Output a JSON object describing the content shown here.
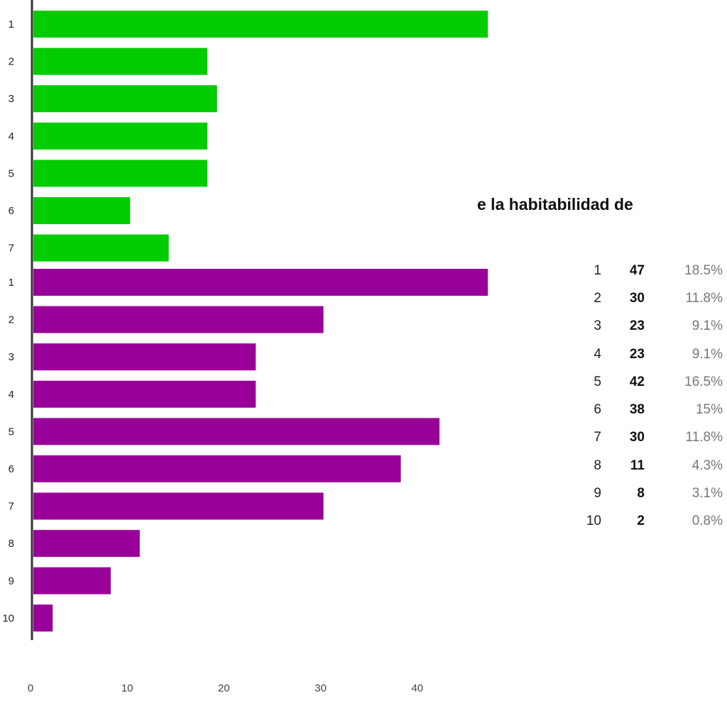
{
  "heading": "e la habitabilidad de",
  "charts": [
    {
      "type": "bar",
      "orientation": "horizontal",
      "color": "#00cc00",
      "categories": [
        "1",
        "2",
        "3",
        "4",
        "5",
        "6",
        "7"
      ],
      "values": [
        47,
        18,
        19,
        18,
        18,
        10,
        14
      ]
    },
    {
      "type": "bar",
      "orientation": "horizontal",
      "color": "#990099",
      "categories": [
        "1",
        "2",
        "3",
        "4",
        "5",
        "6",
        "7",
        "8",
        "9",
        "10"
      ],
      "values": [
        47,
        30,
        23,
        23,
        42,
        38,
        30,
        11,
        8,
        2
      ],
      "xticks": [
        "0",
        "10",
        "20",
        "30",
        "40"
      ],
      "xlim": [
        0,
        47
      ]
    }
  ],
  "summary": [
    {
      "cat": "1",
      "count": "47",
      "pct": "18.5%"
    },
    {
      "cat": "2",
      "count": "30",
      "pct": "11.8%"
    },
    {
      "cat": "3",
      "count": "23",
      "pct": "9.1%"
    },
    {
      "cat": "4",
      "count": "23",
      "pct": "9.1%"
    },
    {
      "cat": "5",
      "count": "42",
      "pct": "16.5%"
    },
    {
      "cat": "6",
      "count": "38",
      "pct": "15%"
    },
    {
      "cat": "7",
      "count": "30",
      "pct": "11.8%"
    },
    {
      "cat": "8",
      "count": "11",
      "pct": "4.3%"
    },
    {
      "cat": "9",
      "count": "8",
      "pct": "3.1%"
    },
    {
      "cat": "10",
      "count": "2",
      "pct": "0.8%"
    }
  ],
  "chart_data": [
    {
      "type": "bar",
      "categories": [
        "1",
        "2",
        "3",
        "4",
        "5",
        "6",
        "7"
      ],
      "values": [
        47,
        18,
        19,
        18,
        18,
        10,
        14
      ],
      "xlim": [
        0,
        47
      ]
    },
    {
      "type": "bar",
      "categories": [
        "1",
        "2",
        "3",
        "4",
        "5",
        "6",
        "7",
        "8",
        "9",
        "10"
      ],
      "values": [
        47,
        30,
        23,
        23,
        42,
        38,
        30,
        11,
        8,
        2
      ],
      "xlim": [
        0,
        47
      ]
    }
  ]
}
